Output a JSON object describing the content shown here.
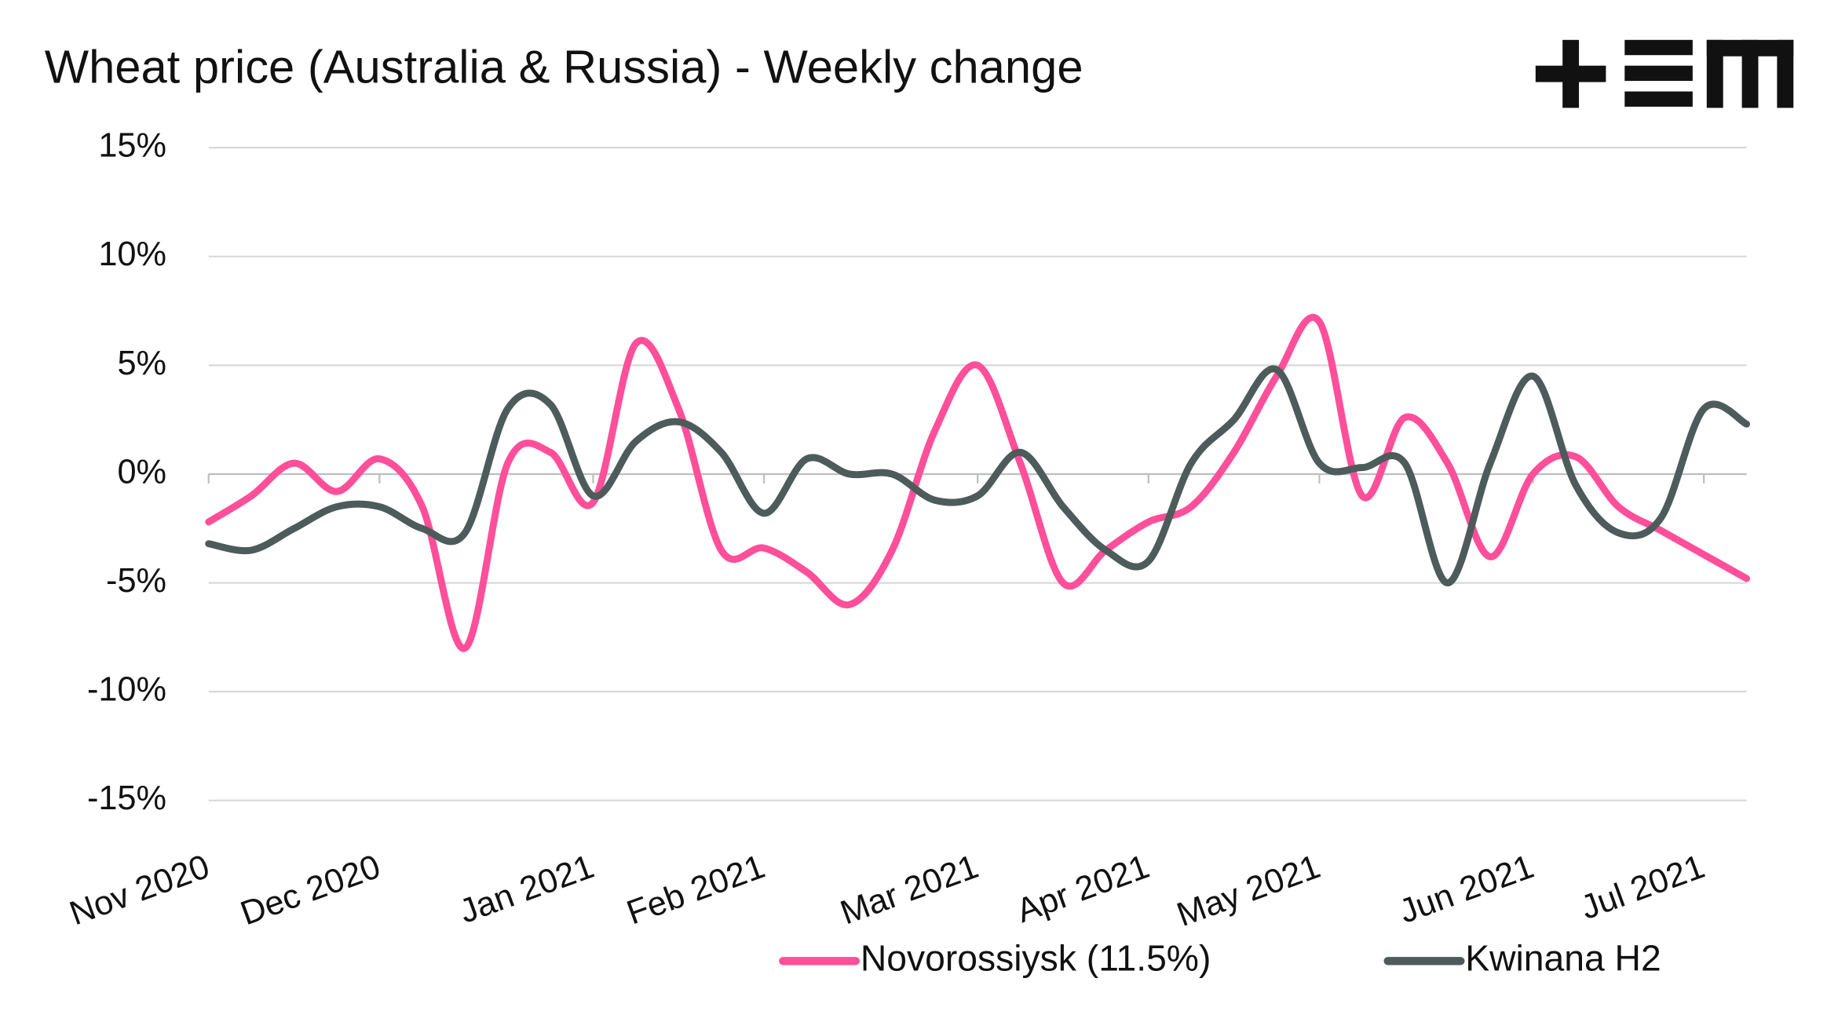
{
  "chart_data": {
    "type": "line",
    "title": "Wheat price (Australia & Russia)  - Weekly change",
    "categories": [
      "Nov 2020",
      null,
      null,
      null,
      "Dec 2020",
      null,
      null,
      null,
      null,
      "Jan 2021",
      null,
      null,
      null,
      "Feb 2021",
      null,
      null,
      null,
      null,
      "Mar 2021",
      null,
      null,
      null,
      "Apr 2021",
      null,
      null,
      null,
      "May 2021",
      null,
      null,
      null,
      null,
      "Jun 2021",
      null,
      null,
      null,
      "Jul 2021",
      null
    ],
    "series": [
      {
        "name": "Novorossiysk (11.5%)",
        "color": "#ff4f9a",
        "values": [
          -2.2,
          -1.0,
          0.5,
          -0.8,
          0.7,
          -1.5,
          -8.0,
          0.5,
          1.0,
          -1.3,
          6.0,
          3.0,
          -3.5,
          -3.4,
          -4.5,
          -6.0,
          -3.5,
          2.0,
          5.0,
          0.5,
          -5.0,
          -3.5,
          -2.2,
          -1.5,
          1.0,
          4.5,
          7.0,
          -1.0,
          2.6,
          0.5,
          -3.8,
          0.0,
          0.8,
          -1.5,
          -2.6,
          -3.7,
          -4.8
        ]
      },
      {
        "name": "Kwinana H2",
        "color": "#4d5b5b",
        "values": [
          -3.2,
          -3.5,
          -2.5,
          -1.5,
          -1.5,
          -2.5,
          -2.7,
          3.0,
          3.2,
          -1.0,
          1.5,
          2.4,
          1.0,
          -1.8,
          0.7,
          0.0,
          0.0,
          -1.2,
          -1.0,
          1.0,
          -1.5,
          -3.5,
          -4.0,
          0.5,
          2.5,
          4.8,
          0.5,
          0.3,
          0.5,
          -5.0,
          0.5,
          4.5,
          -0.5,
          -2.7,
          -2.0,
          3.0,
          2.3
        ]
      }
    ],
    "ylim": [
      -15,
      15
    ],
    "yticks": [
      {
        "value": 15,
        "label": "15%"
      },
      {
        "value": 10,
        "label": "10%"
      },
      {
        "value": 5,
        "label": "5%"
      },
      {
        "value": 0,
        "label": "0%"
      },
      {
        "value": -5,
        "label": "-5%"
      },
      {
        "value": -10,
        "label": "-10%"
      },
      {
        "value": -15,
        "label": "-15%"
      }
    ],
    "grid": true,
    "legend": "bottom"
  }
}
